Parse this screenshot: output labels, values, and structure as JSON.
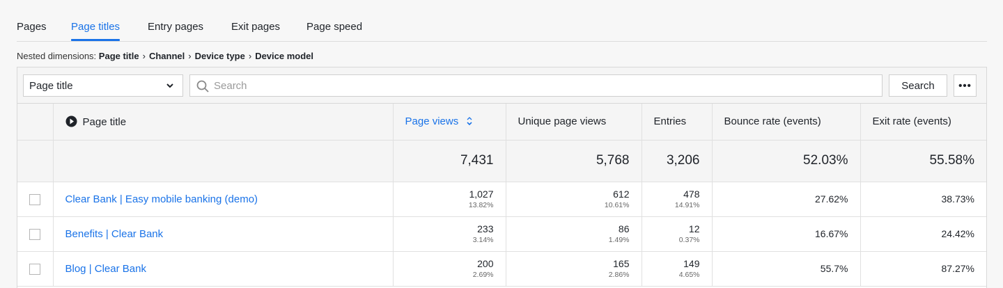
{
  "tabs": [
    {
      "label": "Pages"
    },
    {
      "label": "Page titles",
      "active": true
    },
    {
      "label": "Entry pages"
    },
    {
      "label": "Exit pages"
    },
    {
      "label": "Page speed"
    }
  ],
  "breadcrumb": {
    "lead": "Nested dimensions:",
    "dims": [
      "Page title",
      "Channel",
      "Device type",
      "Device model"
    ]
  },
  "toolbar": {
    "dimension_select": "Page title",
    "search_placeholder": "Search",
    "search_value": "",
    "search_button": "Search",
    "more_button": "•••"
  },
  "table": {
    "columns": [
      "Page title",
      "Page views",
      "Unique page views",
      "Entries",
      "Bounce rate (events)",
      "Exit rate (events)"
    ],
    "sorted_column": "Page views",
    "totals": [
      "7,431",
      "5,768",
      "3,206",
      "52.03%",
      "55.58%"
    ],
    "rows": [
      {
        "title": "Clear Bank | Easy mobile banking (demo)",
        "page_views": "1,027",
        "page_views_pct": "13.82%",
        "unique_page_views": "612",
        "unique_page_views_pct": "10.61%",
        "entries": "478",
        "entries_pct": "14.91%",
        "bounce_rate": "27.62%",
        "exit_rate": "38.73%"
      },
      {
        "title": "Benefits | Clear Bank",
        "page_views": "233",
        "page_views_pct": "3.14%",
        "unique_page_views": "86",
        "unique_page_views_pct": "1.49%",
        "entries": "12",
        "entries_pct": "0.37%",
        "bounce_rate": "16.67%",
        "exit_rate": "24.42%"
      },
      {
        "title": "Blog | Clear Bank",
        "page_views": "200",
        "page_views_pct": "2.69%",
        "unique_page_views": "165",
        "unique_page_views_pct": "2.86%",
        "entries": "149",
        "entries_pct": "4.65%",
        "bounce_rate": "55.7%",
        "exit_rate": "87.27%"
      }
    ]
  },
  "colors": {
    "accent": "#1a73e8",
    "text": "#1f2329",
    "border": "#d8d8d8"
  }
}
